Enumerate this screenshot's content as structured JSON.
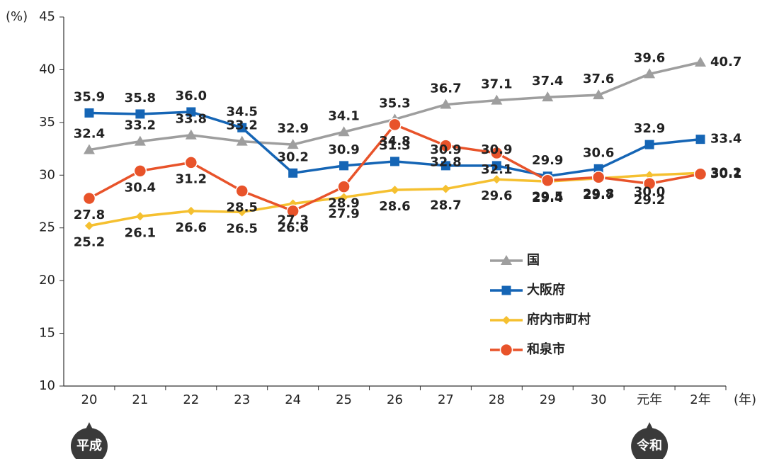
{
  "chart_data": {
    "type": "line",
    "y_label": "(%)",
    "x_label": "(年)",
    "categories": [
      "20",
      "21",
      "22",
      "23",
      "24",
      "25",
      "26",
      "27",
      "28",
      "29",
      "30",
      "元年",
      "2年"
    ],
    "ylim": [
      10,
      45
    ],
    "yticks": [
      10,
      15,
      20,
      25,
      30,
      35,
      40,
      45
    ],
    "grid": false,
    "series": [
      {
        "name": "国",
        "color": "#9e9e9e",
        "marker": "triangle",
        "values": [
          32.4,
          33.2,
          33.8,
          33.2,
          32.9,
          34.1,
          35.3,
          36.7,
          37.1,
          37.4,
          37.6,
          39.6,
          40.7
        ],
        "value_labels": [
          "32.4",
          "33.2",
          "33.8",
          "33.2",
          "32.9",
          "34.1",
          "35.3",
          "36.7",
          "37.1",
          "37.4",
          "37.6",
          "39.6",
          "40.7"
        ]
      },
      {
        "name": "大阪府",
        "color": "#1565b5",
        "marker": "square",
        "values": [
          35.9,
          35.8,
          36.0,
          34.5,
          30.2,
          30.9,
          31.3,
          30.9,
          30.9,
          29.9,
          30.6,
          32.9,
          33.4
        ],
        "value_labels": [
          "35.9",
          "35.8",
          "36.0",
          "34.5",
          "30.2",
          "30.9",
          "31.3",
          "30.9",
          "30.9",
          "29.9",
          "30.6",
          "32.9",
          "33.4"
        ]
      },
      {
        "name": "府内市町村",
        "color": "#f5c030",
        "marker": "diamond",
        "values": [
          25.2,
          26.1,
          26.6,
          26.5,
          27.3,
          27.9,
          28.6,
          28.7,
          29.6,
          29.4,
          29.7,
          30.0,
          30.2
        ],
        "value_labels": [
          "25.2",
          "26.1",
          "26.6",
          "26.5",
          "27.3",
          "27.9",
          "28.6",
          "28.7",
          "29.6",
          "29.4",
          "29.7",
          "30.0",
          "30.2"
        ]
      },
      {
        "name": "和泉市",
        "color": "#e8532a",
        "marker": "circle",
        "values": [
          27.8,
          30.4,
          31.2,
          28.5,
          26.6,
          28.9,
          34.8,
          32.8,
          32.1,
          29.5,
          29.8,
          29.2,
          30.1
        ],
        "value_labels": [
          "27.8",
          "30.4",
          "31.2",
          "28.5",
          "26.6",
          "28.9",
          "34.8",
          "32.8",
          "32.1",
          "29.5",
          "29.8",
          "29.2",
          "30.1"
        ]
      }
    ],
    "annotations": [
      {
        "text": "平成",
        "category": 0
      },
      {
        "text": "令和",
        "category": 11
      }
    ]
  }
}
